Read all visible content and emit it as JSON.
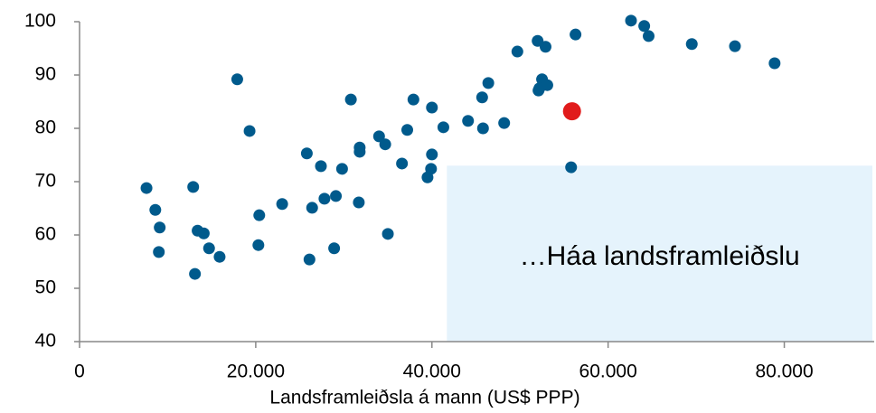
{
  "chart_data": {
    "type": "scatter",
    "x_label": "Landsframleiðsla á mann (US$ PPP)",
    "x": [
      7600,
      8600,
      9100,
      9000,
      12900,
      13400,
      14100,
      13100,
      14700,
      15900,
      17900,
      19300,
      20400,
      20300,
      23000,
      25800,
      26400,
      26100,
      27400,
      27800,
      29100,
      28900,
      29800,
      30800,
      31800,
      31800,
      31700,
      34000,
      34700,
      35000,
      36600,
      37200,
      37900,
      40000,
      40000,
      39900,
      39500,
      41300,
      44100,
      45700,
      45800,
      46400,
      48200,
      49700,
      52000,
      52900,
      52500,
      52200,
      53100,
      52100,
      56300,
      55800,
      62600,
      64100,
      64600,
      69500,
      74400,
      78900
    ],
    "values": [
      68.8,
      64.7,
      61.4,
      56.8,
      69.0,
      60.8,
      60.3,
      52.7,
      57.5,
      55.9,
      89.2,
      79.5,
      63.7,
      58.1,
      65.8,
      75.3,
      65.1,
      55.4,
      72.9,
      66.8,
      67.3,
      57.5,
      72.4,
      85.4,
      76.4,
      75.6,
      66.1,
      78.5,
      77.0,
      60.2,
      73.4,
      79.7,
      85.4,
      83.9,
      75.1,
      72.4,
      70.8,
      80.2,
      81.4,
      85.8,
      80.0,
      88.5,
      81.0,
      94.4,
      96.4,
      95.3,
      89.2,
      87.5,
      88.1,
      87.1,
      97.6,
      72.7,
      100.2,
      99.2,
      97.3,
      95.8,
      95.4,
      92.2
    ],
    "color": "#005a8c",
    "highlight": {
      "x": 55900,
      "value": 83.2,
      "color": "#e11b1b"
    },
    "region": {
      "x": [
        41700,
        90000
      ],
      "y": [
        40,
        73
      ],
      "color": "#e5f3fc",
      "label": "…Háa landsframleiðslu"
    },
    "xlim": [
      0,
      90000
    ],
    "ylim": [
      40,
      100
    ],
    "xticks": [
      0,
      {
        "value": 20000,
        "label": "20.000"
      },
      {
        "value": 40000,
        "label": "40.000"
      },
      {
        "value": 60000,
        "label": "60.000"
      },
      {
        "value": 80000,
        "label": "80.000"
      }
    ],
    "yticks": [
      40,
      50,
      60,
      70,
      80,
      90,
      100
    ]
  }
}
